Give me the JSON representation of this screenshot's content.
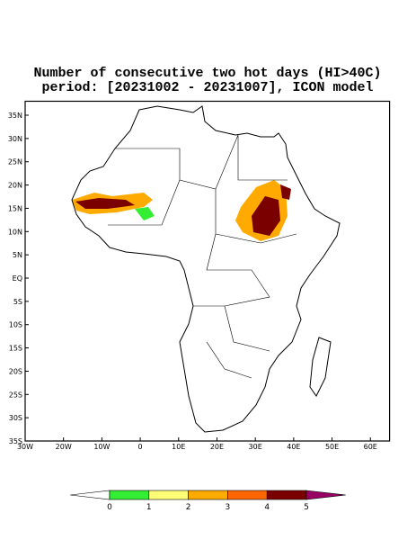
{
  "chart_data": {
    "type": "map",
    "title": [
      "Number of consecutive two hot days (HI>40C)",
      "period: [20231002 - 20231007], ICON model"
    ],
    "xlim": [
      -30,
      65
    ],
    "ylim": [
      -35,
      38
    ],
    "xticks": [
      {
        "value": -30,
        "label": "30W"
      },
      {
        "value": -20,
        "label": "20W"
      },
      {
        "value": -10,
        "label": "10W"
      },
      0,
      {
        "value": 10,
        "label": "10E"
      },
      {
        "value": 20,
        "label": "20E"
      },
      {
        "value": 30,
        "label": "30E"
      },
      {
        "value": 40,
        "label": "40E"
      },
      {
        "value": 50,
        "label": "50E"
      },
      {
        "value": 60,
        "label": "60E"
      }
    ],
    "yticks": [
      {
        "value": 35,
        "label": "35N"
      },
      {
        "value": 30,
        "label": "30N"
      },
      {
        "value": 25,
        "label": "25N"
      },
      {
        "value": 20,
        "label": "20N"
      },
      {
        "value": 15,
        "label": "15N"
      },
      {
        "value": 10,
        "label": "10N"
      },
      {
        "value": 5,
        "label": "5N"
      },
      {
        "value": 0,
        "label": "EQ"
      },
      {
        "value": -5,
        "label": "5S"
      },
      {
        "value": -10,
        "label": "10S"
      },
      {
        "value": -15,
        "label": "15S"
      },
      {
        "value": -20,
        "label": "20S"
      },
      {
        "value": -25,
        "label": "25S"
      },
      {
        "value": -30,
        "label": "30S"
      },
      {
        "value": -35,
        "label": "35S"
      }
    ],
    "colorbar": {
      "levels": [
        0,
        1,
        2,
        3,
        4,
        5
      ],
      "colors": [
        "#ffffff",
        "#33ee33",
        "#ffff77",
        "#ffaa00",
        "#ff6600",
        "#7a0000",
        "#990066"
      ]
    }
  }
}
